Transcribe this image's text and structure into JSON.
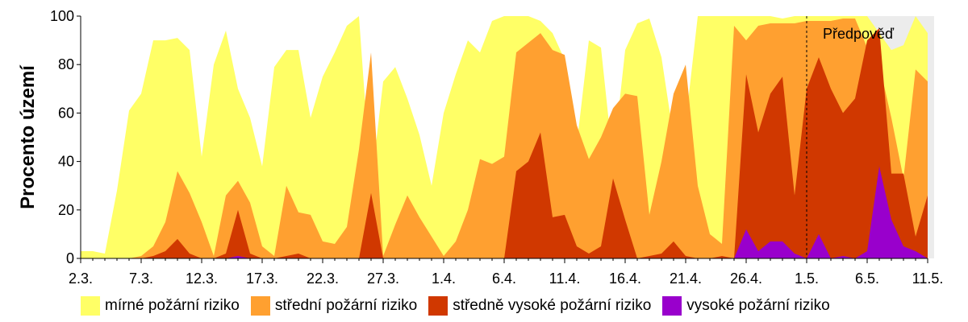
{
  "chart_data": {
    "type": "area",
    "ylabel": "Procento území",
    "ylim": [
      0,
      100
    ],
    "yticks": [
      0,
      20,
      40,
      60,
      80,
      100
    ],
    "x_tick_labels": [
      "2.3.",
      "7.3.",
      "12.3.",
      "17.3.",
      "22.3.",
      "27.3.",
      "1.4.",
      "6.4.",
      "11.4.",
      "16.4.",
      "21.4.",
      "26.4.",
      "1.5.",
      "6.5.",
      "11.5."
    ],
    "forecast_label": "Předpověď",
    "forecast_start_day": 60,
    "series": [
      {
        "name": "mírné požární riziko",
        "color": "#ffff66",
        "values": [
          3,
          3,
          2,
          28,
          61,
          68,
          90,
          90,
          91,
          86,
          42,
          80,
          94,
          70,
          58,
          38,
          79,
          86,
          86,
          58,
          75,
          85,
          96,
          100,
          30,
          73,
          79,
          66,
          51,
          30,
          60,
          76,
          90,
          85,
          98,
          100,
          100,
          100,
          98,
          93,
          82,
          47,
          90,
          87,
          40,
          86,
          97,
          99,
          83,
          50,
          56,
          100,
          100,
          100,
          100,
          100,
          100,
          100,
          99,
          100,
          100,
          100,
          100,
          100,
          100,
          100,
          93,
          86,
          88,
          100,
          93
        ]
      },
      {
        "name": "střední požární riziko",
        "color": "#ffa030",
        "values": [
          0,
          0,
          0,
          0,
          0,
          1,
          5,
          15,
          36,
          27,
          15,
          1,
          26,
          32,
          23,
          5,
          1,
          30,
          19,
          18,
          7,
          6,
          13,
          45,
          85,
          1,
          14,
          26,
          17,
          9,
          1,
          7,
          20,
          41,
          39,
          42,
          85,
          89,
          93,
          86,
          84,
          55,
          41,
          50,
          62,
          68,
          67,
          18,
          40,
          68,
          80,
          30,
          10,
          6,
          96,
          90,
          96,
          97,
          97,
          97,
          98,
          98,
          98,
          99,
          99,
          87,
          80,
          58,
          33,
          78,
          73
        ]
      },
      {
        "name": "středně vysoké požární riziko",
        "color": "#d03800",
        "values": [
          0,
          0,
          0,
          0,
          0,
          0,
          1,
          3,
          8,
          2,
          0,
          0,
          2,
          20,
          2,
          0,
          0,
          1,
          2,
          0,
          0,
          0,
          0,
          0,
          27,
          0,
          0,
          0,
          0,
          0,
          0,
          0,
          0,
          0,
          0,
          0,
          36,
          40,
          52,
          17,
          18,
          5,
          2,
          5,
          33,
          16,
          0,
          1,
          2,
          7,
          1,
          0,
          0,
          1,
          0,
          76,
          52,
          68,
          75,
          26,
          70,
          83,
          70,
          60,
          66,
          90,
          95,
          35,
          35,
          9,
          26
        ]
      },
      {
        "name": "vysoké požární riziko",
        "color": "#9900cc",
        "values": [
          0,
          0,
          0,
          0,
          0,
          0,
          0,
          0,
          0,
          0,
          0,
          0,
          0,
          1,
          0,
          0,
          0,
          0,
          0,
          0,
          0,
          0,
          0,
          0,
          0,
          0,
          0,
          0,
          0,
          0,
          0,
          0,
          0,
          0,
          0,
          0,
          0,
          0,
          0,
          0,
          0,
          0,
          0,
          0,
          0,
          0,
          0,
          0,
          0,
          0,
          0,
          0,
          0,
          0,
          0,
          12,
          3,
          7,
          7,
          2,
          0,
          10,
          0,
          1,
          0,
          3,
          38,
          16,
          5,
          3,
          0
        ]
      }
    ]
  }
}
